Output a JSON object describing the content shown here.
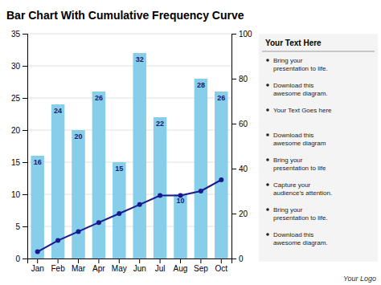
{
  "chart_data": {
    "type": "bar",
    "title": "Bar Chart With Cumulative Frequency Curve",
    "categories": [
      "Jan",
      "Feb",
      "Mar",
      "Apr",
      "May",
      "Jun",
      "Jul",
      "Aug",
      "Sep",
      "Oct"
    ],
    "series": [
      {
        "type": "bar",
        "color": "#87CEEB",
        "values": [
          16,
          24,
          20,
          26,
          15,
          32,
          22,
          10,
          28,
          26
        ],
        "data_labels": true
      },
      {
        "type": "line",
        "axis": "y2",
        "color": "#1a1a8c",
        "marker": "circle",
        "values": [
          3,
          8,
          12,
          16,
          20,
          24,
          28,
          28,
          30,
          35
        ]
      }
    ],
    "ylim": [
      0,
      35
    ],
    "yticks": [
      0,
      5,
      10,
      15,
      20,
      25,
      30,
      35
    ],
    "y2lim": [
      0,
      100
    ],
    "y2ticks": [
      0,
      20,
      40,
      60,
      80,
      100
    ],
    "grid": true,
    "annotations": [
      "Your Text Here",
      "Bring your\npresentation to life.",
      "Download this\nawesome diagram.",
      "Your Text Goes here",
      "Download this\nawesome diagram",
      "Bring your\npresentation to life",
      "Capture your\naudience’s attention.",
      "Bring your\npresentation to life.",
      "Download this\nawesome diagram.",
      "Your Logo"
    ]
  }
}
